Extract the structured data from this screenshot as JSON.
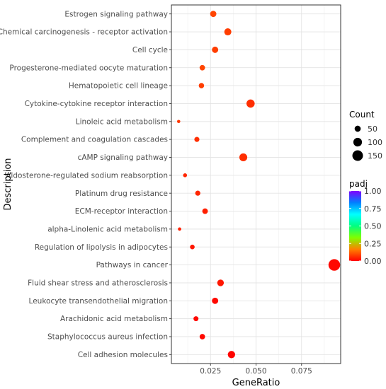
{
  "chart_data": {
    "type": "scatter",
    "xlabel": "GeneRatio",
    "ylabel": "Description",
    "x_ticks": [
      0.025,
      0.05,
      0.075
    ],
    "x_tick_labels": [
      "0.025",
      "0.050",
      "0.075"
    ],
    "xlim": [
      0.0035,
      0.0965
    ],
    "grid": true,
    "categories": [
      "Estrogen signaling pathway",
      "Chemical carcinogenesis - receptor activation",
      "Cell cycle",
      "Progesterone-mediated oocyte maturation",
      "Hematopoietic cell lineage",
      "Cytokine-cytokine receptor interaction",
      "Linoleic acid metabolism",
      "Complement and coagulation cascades",
      "cAMP signaling pathway",
      "Aldosterone-regulated sodium reabsorption",
      "Platinum drug resistance",
      "ECM-receptor interaction",
      "alpha-Linolenic acid metabolism",
      "Regulation of lipolysis in adipocytes",
      "Pathways in cancer",
      "Fluid shear stress and atherosclerosis",
      "Leukocyte transendothelial migration",
      "Arachidonic acid metabolism",
      "Staphylococcus aureus infection",
      "Cell adhesion molecules"
    ],
    "points": [
      {
        "category": "Estrogen signaling pathway",
        "gene_ratio": 0.0265,
        "count": 52,
        "padj": 0.09
      },
      {
        "category": "Chemical carcinogenesis - receptor activation",
        "gene_ratio": 0.0345,
        "count": 67,
        "padj": 0.08
      },
      {
        "category": "Cell cycle",
        "gene_ratio": 0.0275,
        "count": 53,
        "padj": 0.08
      },
      {
        "category": "Progesterone-mediated oocyte maturation",
        "gene_ratio": 0.0205,
        "count": 40,
        "padj": 0.09
      },
      {
        "category": "Hematopoietic cell lineage",
        "gene_ratio": 0.02,
        "count": 38,
        "padj": 0.08
      },
      {
        "category": "Cytokine-cytokine receptor interaction",
        "gene_ratio": 0.047,
        "count": 90,
        "padj": 0.06
      },
      {
        "category": "Linoleic acid metabolism",
        "gene_ratio": 0.0075,
        "count": 14,
        "padj": 0.07
      },
      {
        "category": "Complement and coagulation cascades",
        "gene_ratio": 0.0175,
        "count": 34,
        "padj": 0.06
      },
      {
        "category": "cAMP signaling pathway",
        "gene_ratio": 0.043,
        "count": 83,
        "padj": 0.06
      },
      {
        "category": "Aldosterone-regulated sodium reabsorption",
        "gene_ratio": 0.011,
        "count": 21,
        "padj": 0.05
      },
      {
        "category": "Platinum drug resistance",
        "gene_ratio": 0.018,
        "count": 35,
        "padj": 0.05
      },
      {
        "category": "ECM-receptor interaction",
        "gene_ratio": 0.022,
        "count": 42,
        "padj": 0.04
      },
      {
        "category": "alpha-Linolenic acid metabolism",
        "gene_ratio": 0.008,
        "count": 15,
        "padj": 0.04
      },
      {
        "category": "Regulation of lipolysis in adipocytes",
        "gene_ratio": 0.015,
        "count": 29,
        "padj": 0.03
      },
      {
        "category": "Pathways in cancer",
        "gene_ratio": 0.093,
        "count": 180,
        "padj": 0.01
      },
      {
        "category": "Fluid shear stress and atherosclerosis",
        "gene_ratio": 0.0305,
        "count": 59,
        "padj": 0.03
      },
      {
        "category": "Leukocyte transendothelial migration",
        "gene_ratio": 0.0275,
        "count": 53,
        "padj": 0.01
      },
      {
        "category": "Arachidonic acid metabolism",
        "gene_ratio": 0.017,
        "count": 33,
        "padj": 0.01
      },
      {
        "category": "Staphylococcus aureus infection",
        "gene_ratio": 0.0205,
        "count": 40,
        "padj": 0.01
      },
      {
        "category": "Cell adhesion molecules",
        "gene_ratio": 0.0365,
        "count": 71,
        "padj": 0.005
      }
    ],
    "size_legend": {
      "title": "Count",
      "values": [
        50,
        100,
        150
      ],
      "labels": [
        "50",
        "100",
        "150"
      ],
      "placement": "right"
    },
    "color_legend": {
      "title": "padj",
      "ticks": [
        1.0,
        0.75,
        0.5,
        0.25,
        0.0
      ],
      "labels": [
        "1.00",
        "0.75",
        "0.50",
        "0.25",
        "0.00"
      ],
      "range": [
        0.0,
        1.0
      ],
      "placement": "right",
      "palette": [
        "#ff0000",
        "#ff8000",
        "#80ff00",
        "#00ff80",
        "#00ffff",
        "#0080ff",
        "#8000ff"
      ]
    }
  }
}
